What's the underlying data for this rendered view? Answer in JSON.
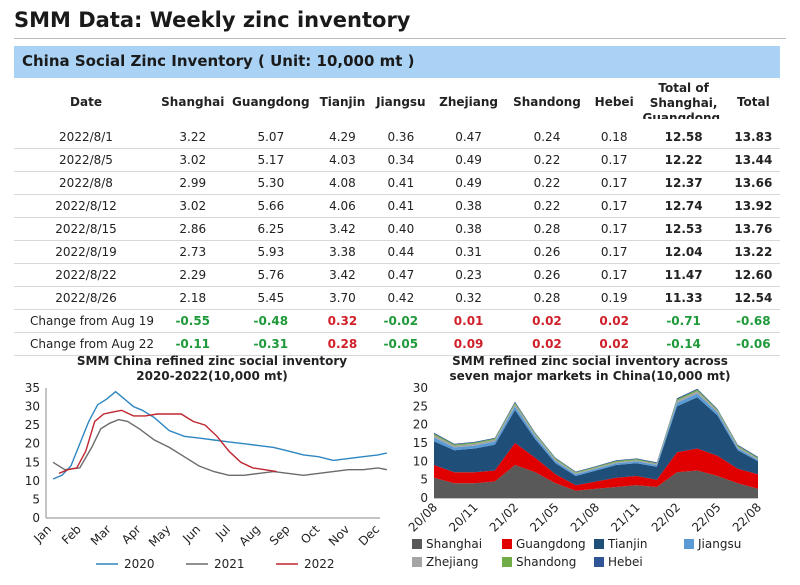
{
  "page": {
    "title": "SMM Data: Weekly zinc inventory",
    "table_title": "China Social Zinc Inventory ( Unit: 10,000 mt )"
  },
  "table": {
    "headers": [
      "Date",
      "Shanghai",
      "Guangdong",
      "Tianjin",
      "Jiangsu",
      "Zhejiang",
      "Shandong",
      "Hebei",
      "Total of Shanghai, Guangdong, Tianjin",
      "Total"
    ],
    "rows": [
      {
        "date": "2022/8/1",
        "vals": [
          "3.22",
          "5.07",
          "4.29",
          "0.36",
          "0.47",
          "0.24",
          "0.18",
          "12.58",
          "13.83"
        ]
      },
      {
        "date": "2022/8/5",
        "vals": [
          "3.02",
          "5.17",
          "4.03",
          "0.34",
          "0.49",
          "0.22",
          "0.17",
          "12.22",
          "13.44"
        ]
      },
      {
        "date": "2022/8/8",
        "vals": [
          "2.99",
          "5.30",
          "4.08",
          "0.41",
          "0.49",
          "0.22",
          "0.17",
          "12.37",
          "13.66"
        ]
      },
      {
        "date": "2022/8/12",
        "vals": [
          "3.02",
          "5.66",
          "4.06",
          "0.41",
          "0.38",
          "0.22",
          "0.17",
          "12.74",
          "13.92"
        ]
      },
      {
        "date": "2022/8/15",
        "vals": [
          "2.86",
          "6.25",
          "3.42",
          "0.40",
          "0.38",
          "0.28",
          "0.17",
          "12.53",
          "13.76"
        ]
      },
      {
        "date": "2022/8/19",
        "vals": [
          "2.73",
          "5.93",
          "3.38",
          "0.44",
          "0.31",
          "0.26",
          "0.17",
          "12.04",
          "13.22"
        ]
      },
      {
        "date": "2022/8/22",
        "vals": [
          "2.29",
          "5.76",
          "3.42",
          "0.47",
          "0.23",
          "0.26",
          "0.17",
          "11.47",
          "12.60"
        ]
      },
      {
        "date": "2022/8/26",
        "vals": [
          "2.18",
          "5.45",
          "3.70",
          "0.42",
          "0.32",
          "0.28",
          "0.19",
          "11.33",
          "12.54"
        ]
      }
    ],
    "changes": [
      {
        "label": "Change from Aug 19",
        "vals": [
          "-0.55",
          "-0.48",
          "0.32",
          "-0.02",
          "0.01",
          "0.02",
          "0.02",
          "-0.71",
          "-0.68"
        ]
      },
      {
        "label": "Change from Aug 22",
        "vals": [
          "-0.11",
          "-0.31",
          "0.28",
          "-0.05",
          "0.09",
          "0.02",
          "0.02",
          "-0.14",
          "-0.06"
        ]
      }
    ],
    "colors": {
      "negative": "#1f9a3a",
      "positive": "#d0202a",
      "banner": "#a9d2f5"
    }
  },
  "chart_data": [
    {
      "type": "line",
      "title": "SMM China refined zinc social inventory 2020-2022(10,000 mt)",
      "x_categories": [
        "Jan",
        "Feb",
        "Mar",
        "Apr",
        "May",
        "Jun",
        "Jul",
        "Aug",
        "Sep",
        "Oct",
        "Nov",
        "Dec"
      ],
      "ylim": [
        0,
        35
      ],
      "y_ticks": [
        0,
        5,
        10,
        15,
        20,
        25,
        30,
        35
      ],
      "grid": false,
      "legend": "bottom",
      "series": [
        {
          "name": "2020",
          "color": "#2e86c1",
          "x": [
            0.1,
            0.4,
            0.7,
            1.0,
            1.3,
            1.6,
            1.9,
            2.2,
            2.5,
            2.8,
            3.1,
            3.5,
            4.0,
            4.5,
            5.0,
            5.5,
            6.0,
            6.5,
            7.0,
            7.5,
            8.0,
            8.5,
            9.0,
            9.5,
            10.0,
            10.5,
            11.0,
            11.3
          ],
          "values": [
            10.5,
            11.5,
            14,
            20,
            26,
            30.5,
            32,
            34,
            32,
            30,
            29,
            27,
            23.5,
            22,
            21.5,
            21,
            20.5,
            20,
            19.5,
            19,
            18,
            17,
            16.5,
            15.5,
            16,
            16.5,
            17,
            17.5
          ]
        },
        {
          "name": "2021",
          "color": "#6b6b6b",
          "x": [
            0.1,
            0.5,
            1.0,
            1.4,
            1.7,
            2.0,
            2.3,
            2.6,
            3.0,
            3.5,
            4.0,
            4.5,
            5.0,
            5.5,
            6.0,
            6.5,
            7.0,
            7.5,
            8.0,
            8.5,
            9.0,
            9.5,
            10.0,
            10.5,
            11.0,
            11.3
          ],
          "values": [
            15,
            13,
            13.5,
            19,
            24,
            25.5,
            26.5,
            26,
            24,
            21,
            19,
            16.5,
            14,
            12.5,
            11.5,
            11.5,
            12,
            12.5,
            12,
            11.5,
            12,
            12.5,
            13,
            13,
            13.5,
            13
          ]
        },
        {
          "name": "2022",
          "color": "#c0252f",
          "x": [
            0.3,
            0.6,
            0.9,
            1.2,
            1.5,
            1.8,
            2.1,
            2.4,
            2.8,
            3.2,
            3.6,
            4.0,
            4.4,
            4.8,
            5.2,
            5.6,
            6.0,
            6.4,
            6.8,
            7.2,
            7.6
          ],
          "values": [
            12,
            13,
            13.5,
            18,
            26,
            28,
            28.5,
            29,
            27.5,
            27.5,
            28,
            28,
            28,
            26,
            25,
            22,
            18,
            15,
            13.5,
            13,
            12.5
          ]
        }
      ]
    },
    {
      "type": "area",
      "stacked": true,
      "title": "SMM refined zinc social inventory across seven major markets in China(10,000 mt)",
      "x_tick_labels": [
        "20/08",
        "20/11",
        "21/02",
        "21/05",
        "21/08",
        "21/11",
        "22/02",
        "22/05",
        "22/08"
      ],
      "ylim": [
        0,
        30
      ],
      "y_ticks": [
        0,
        5,
        10,
        15,
        20,
        25,
        30
      ],
      "legend": "bottom",
      "x": [
        0,
        0.5,
        1,
        1.5,
        2,
        2.5,
        3,
        3.5,
        4,
        4.5,
        5,
        5.5,
        6,
        6.5,
        7,
        7.5,
        8
      ],
      "series": [
        {
          "name": "Shanghai",
          "color": "#595959",
          "values": [
            5.5,
            4,
            4,
            4.5,
            9,
            7,
            4,
            2,
            2.5,
            3,
            3.5,
            3,
            7,
            7.5,
            6,
            4,
            2.5
          ]
        },
        {
          "name": "Guangdong",
          "color": "#e00000",
          "values": [
            3.5,
            3,
            3,
            3,
            6,
            4,
            2.5,
            1.5,
            2,
            2.5,
            2.5,
            2,
            5.5,
            6,
            5.5,
            4,
            4
          ]
        },
        {
          "name": "Tianjin",
          "color": "#1f4e79",
          "values": [
            6.5,
            6,
            6.5,
            7,
            9,
            5,
            3,
            2.5,
            3,
            3.5,
            3.5,
            3.5,
            12.5,
            14,
            11,
            5,
            3.5
          ]
        },
        {
          "name": "Jiangsu",
          "color": "#5b9bd5",
          "values": [
            1,
            0.8,
            0.8,
            0.9,
            1,
            0.8,
            0.6,
            0.5,
            0.5,
            0.5,
            0.5,
            0.5,
            1,
            1,
            0.8,
            0.6,
            0.4
          ]
        },
        {
          "name": "Zhejiang",
          "color": "#a5a5a5",
          "values": [
            0.6,
            0.5,
            0.5,
            0.5,
            0.6,
            0.5,
            0.4,
            0.3,
            0.3,
            0.3,
            0.3,
            0.3,
            0.5,
            0.6,
            0.5,
            0.4,
            0.3
          ]
        },
        {
          "name": "Shandong",
          "color": "#70ad47",
          "values": [
            0.4,
            0.3,
            0.3,
            0.3,
            0.4,
            0.3,
            0.3,
            0.2,
            0.2,
            0.3,
            0.3,
            0.2,
            0.4,
            0.4,
            0.3,
            0.3,
            0.3
          ]
        },
        {
          "name": "Hebei",
          "color": "#2f5597",
          "values": [
            0.3,
            0.2,
            0.2,
            0.2,
            0.3,
            0.2,
            0.2,
            0.2,
            0.2,
            0.2,
            0.2,
            0.2,
            0.3,
            0.3,
            0.2,
            0.2,
            0.2
          ]
        }
      ]
    }
  ]
}
